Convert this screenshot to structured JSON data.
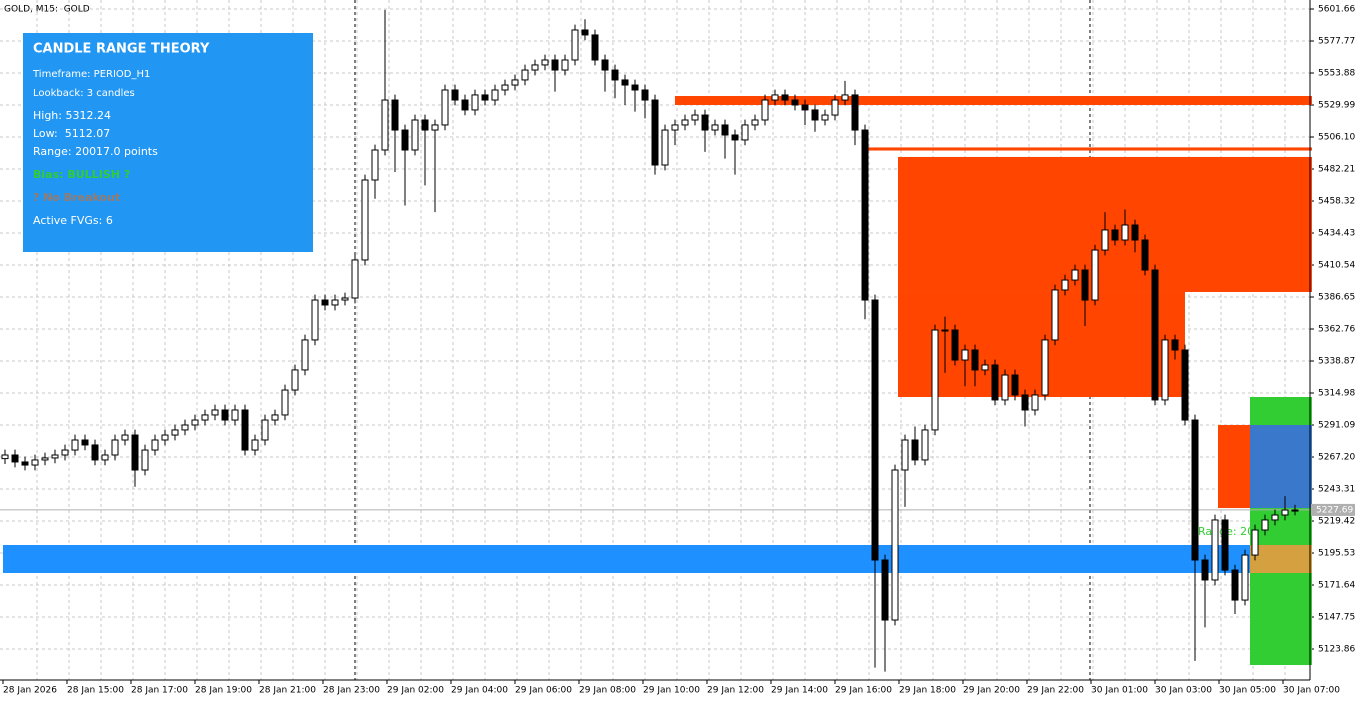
{
  "chart_data": {
    "type": "candlestick",
    "symbol_label": "GOLD, M15:  GOLD",
    "x_labels": [
      "28 Jan 2026",
      "28 Jan 15:00",
      "28 Jan 17:00",
      "28 Jan 19:00",
      "28 Jan 21:00",
      "28 Jan 23:00",
      "29 Jan 02:00",
      "29 Jan 04:00",
      "29 Jan 06:00",
      "29 Jan 08:00",
      "29 Jan 10:00",
      "29 Jan 12:00",
      "29 Jan 14:00",
      "29 Jan 16:00",
      "29 Jan 18:00",
      "29 Jan 20:00",
      "29 Jan 22:00",
      "30 Jan 01:00",
      "30 Jan 03:00",
      "30 Jan 05:00",
      "30 Jan 07:00"
    ],
    "open": [
      5266.0,
      5268.7,
      5263.5,
      5261.2,
      5265.0,
      5266.5,
      5268.7,
      5272.4,
      5279.9,
      5276.2,
      5265.0,
      5268.7,
      5279.9,
      5283.6,
      5257.5,
      5272.4,
      5279.9,
      5283.6,
      5287.4,
      5291.1,
      5294.8,
      5298.6,
      5302.3,
      5294.8,
      5302.3,
      5272.4,
      5279.9,
      5294.8,
      5298.6,
      5317.2,
      5332.2,
      5354.6,
      5384.4,
      5380.7,
      5384.4,
      5385.9,
      5414.3,
      5474.0,
      5496.4,
      5533.7,
      5511.3,
      5496.4,
      5518.8,
      5511.3,
      5515.1,
      5541.2,
      5533.7,
      5526.3,
      5537.5,
      5533.7,
      5541.2,
      5544.9,
      5548.7,
      5556.1,
      5559.9,
      5563.6,
      5556.1,
      5563.6,
      5586.0,
      5582.3,
      5563.6,
      5556.1,
      5548.7,
      5544.9,
      5541.2,
      5533.7,
      5485.2,
      5511.3,
      5515.1,
      5518.8,
      5522.5,
      5511.3,
      5515.1,
      5507.6,
      5503.9,
      5515.1,
      5518.8,
      5533.7,
      5537.5,
      5533.7,
      5530.0,
      5526.3,
      5518.8,
      5522.5,
      5533.7,
      5537.5,
      5511.3,
      5384.4,
      5190.3,
      5145.5,
      5257.5,
      5279.9,
      5265.0,
      5287.4,
      5362.0,
      5362.0,
      5339.6,
      5347.1,
      5332.2,
      5335.9,
      5309.8,
      5328.4,
      5313.5,
      5302.3,
      5313.5,
      5354.6,
      5391.9,
      5399.3,
      5406.8,
      5384.4,
      5421.7,
      5436.7,
      5429.2,
      5440.4,
      5429.2,
      5406.8,
      5309.8,
      5354.6,
      5347.1,
      5294.8,
      5190.3,
      5175.4,
      5220.2,
      5182.8,
      5160.4,
      5194.0,
      5212.7,
      5220.2,
      5223.9,
      5227.6
    ],
    "high": [
      5272.7,
      5272.7,
      5267.5,
      5269.0,
      5270.5,
      5272.7,
      5276.4,
      5283.9,
      5283.9,
      5280.2,
      5272.7,
      5283.9,
      5287.6,
      5287.6,
      5276.4,
      5283.9,
      5287.6,
      5291.4,
      5295.1,
      5298.8,
      5302.6,
      5306.3,
      5306.3,
      5306.3,
      5306.3,
      5283.9,
      5298.8,
      5302.6,
      5321.2,
      5336.2,
      5358.6,
      5388.4,
      5388.4,
      5388.4,
      5389.9,
      5418.3,
      5478.0,
      5500.4,
      5601.0,
      5537.7,
      5515.3,
      5522.8,
      5522.8,
      5519.1,
      5545.2,
      5545.2,
      5537.7,
      5541.5,
      5541.5,
      5545.2,
      5548.9,
      5552.7,
      5560.1,
      5563.9,
      5567.6,
      5567.6,
      5567.6,
      5590.0,
      5594.0,
      5586.3,
      5567.6,
      5560.1,
      5552.7,
      5548.9,
      5545.2,
      5537.7,
      5515.3,
      5519.1,
      5522.8,
      5526.5,
      5526.5,
      5519.1,
      5519.1,
      5511.6,
      5519.1,
      5522.8,
      5537.7,
      5541.5,
      5541.5,
      5537.7,
      5534.0,
      5530.3,
      5526.5,
      5537.7,
      5548.0,
      5541.5,
      5515.3,
      5388.4,
      5194.3,
      5261.5,
      5283.9,
      5290.0,
      5291.4,
      5366.0,
      5372.0,
      5366.0,
      5351.1,
      5351.1,
      5339.9,
      5339.9,
      5332.4,
      5332.4,
      5317.5,
      5317.5,
      5358.6,
      5395.9,
      5403.3,
      5410.8,
      5410.8,
      5425.7,
      5450.0,
      5440.7,
      5452.0,
      5444.4,
      5433.2,
      5410.8,
      5358.6,
      5358.6,
      5351.1,
      5298.8,
      5194.3,
      5224.2,
      5224.2,
      5186.8,
      5198.0,
      5216.7,
      5224.2,
      5227.9,
      5238.0,
      5231.6
    ],
    "low": [
      5262.0,
      5259.5,
      5257.2,
      5257.2,
      5261.0,
      5262.5,
      5264.7,
      5268.4,
      5272.2,
      5261.0,
      5261.0,
      5264.7,
      5275.9,
      5245.0,
      5253.5,
      5268.4,
      5275.9,
      5279.6,
      5283.4,
      5287.1,
      5290.8,
      5294.6,
      5290.8,
      5290.8,
      5268.4,
      5268.4,
      5275.9,
      5290.8,
      5294.6,
      5313.2,
      5328.2,
      5350.6,
      5376.7,
      5376.7,
      5380.4,
      5381.9,
      5410.3,
      5460.0,
      5492.4,
      5480.0,
      5455.0,
      5492.4,
      5470.0,
      5450.0,
      5511.1,
      5529.7,
      5522.3,
      5522.3,
      5529.7,
      5529.7,
      5537.2,
      5540.9,
      5544.7,
      5552.1,
      5555.9,
      5540.0,
      5552.1,
      5559.6,
      5578.3,
      5559.6,
      5540.0,
      5535.0,
      5530.0,
      5525.0,
      5520.0,
      5478.0,
      5481.2,
      5500.0,
      5511.1,
      5514.8,
      5495.0,
      5507.3,
      5490.0,
      5478.0,
      5499.9,
      5511.1,
      5514.8,
      5529.7,
      5529.7,
      5526.0,
      5515.0,
      5510.0,
      5514.8,
      5518.5,
      5529.7,
      5500.0,
      5370.0,
      5110.0,
      5107.0,
      5141.5,
      5230.0,
      5261.0,
      5261.0,
      5283.4,
      5330.0,
      5335.6,
      5320.0,
      5320.0,
      5328.2,
      5305.8,
      5305.8,
      5309.5,
      5290.0,
      5298.3,
      5309.5,
      5350.6,
      5387.9,
      5395.3,
      5365.0,
      5380.4,
      5417.7,
      5425.2,
      5425.2,
      5420.0,
      5402.8,
      5305.8,
      5305.8,
      5340.0,
      5290.8,
      5115.0,
      5140.0,
      5171.4,
      5178.8,
      5150.0,
      5156.4,
      5190.0,
      5208.7,
      5216.2,
      5219.9,
      5223.6
    ],
    "close": [
      5268.7,
      5263.5,
      5261.2,
      5265.0,
      5266.5,
      5268.7,
      5272.4,
      5279.9,
      5276.2,
      5265.0,
      5268.7,
      5279.9,
      5283.6,
      5257.5,
      5272.4,
      5279.9,
      5283.6,
      5287.4,
      5291.1,
      5294.8,
      5298.6,
      5302.3,
      5294.8,
      5302.3,
      5272.4,
      5279.9,
      5294.8,
      5298.6,
      5317.2,
      5332.2,
      5354.6,
      5384.4,
      5380.7,
      5384.4,
      5385.9,
      5414.3,
      5474.0,
      5496.4,
      5533.7,
      5511.3,
      5496.4,
      5518.8,
      5511.3,
      5515.1,
      5541.2,
      5533.7,
      5526.3,
      5537.5,
      5533.7,
      5541.2,
      5544.9,
      5548.7,
      5556.1,
      5559.9,
      5563.6,
      5556.1,
      5563.6,
      5586.0,
      5582.3,
      5563.6,
      5556.1,
      5548.7,
      5544.9,
      5541.2,
      5533.7,
      5485.2,
      5511.3,
      5515.1,
      5518.8,
      5522.5,
      5511.3,
      5515.1,
      5507.6,
      5503.9,
      5515.1,
      5518.8,
      5533.7,
      5537.5,
      5533.7,
      5530.0,
      5526.3,
      5518.8,
      5522.5,
      5533.7,
      5537.5,
      5511.3,
      5384.4,
      5190.3,
      5145.5,
      5257.5,
      5279.9,
      5265.0,
      5287.4,
      5362.0,
      5362.0,
      5339.6,
      5347.1,
      5332.2,
      5335.9,
      5309.8,
      5328.4,
      5313.5,
      5302.3,
      5313.5,
      5354.6,
      5391.9,
      5399.3,
      5406.8,
      5384.4,
      5421.7,
      5436.7,
      5429.2,
      5440.4,
      5429.2,
      5406.8,
      5309.8,
      5354.6,
      5347.1,
      5294.8,
      5190.3,
      5175.4,
      5220.2,
      5182.8,
      5160.4,
      5194.0,
      5212.7,
      5220.2,
      5223.9,
      5227.6,
      5227.6
    ],
    "ylim": [
      5100.72,
      5608.38
    ],
    "yticks": [
      5601.66,
      5577.77,
      5553.88,
      5529.99,
      {
        "value": 5506.1,
        "label": "5506.10"
      },
      5482.21,
      5458.32,
      5434.43,
      5410.54,
      5386.65,
      5362.76,
      5338.87,
      5314.98,
      5291.09,
      {
        "value": 5267.2,
        "label": "5267.20"
      },
      5243.31,
      5219.42,
      5195.53,
      5171.64,
      5147.75,
      5123.86
    ],
    "grid": true,
    "current_price": 5227.69,
    "zones": [
      {
        "top": 5536.7,
        "bottom": 5530.0,
        "color": "#ff4500"
      },
      {
        "top": 5498.3,
        "bottom": 5496.0,
        "color": "#ff4500"
      },
      {
        "top": 5491.2,
        "bottom": 5390.4,
        "color": "#ff4500"
      },
      {
        "top": 5390.4,
        "bottom": 5312.0,
        "color": "#ff4500"
      },
      {
        "top": 5201.5,
        "bottom": 5180.6,
        "color": "#1e90ff"
      },
      {
        "top": 5312.0,
        "bottom": 5291.1,
        "color": "#32cd32"
      },
      {
        "top": 5291.1,
        "bottom": 5229.1,
        "color": "#3a78cc"
      },
      {
        "top": 5291.1,
        "bottom": 5229.1,
        "color": "#ff4500"
      },
      {
        "top": 5229.1,
        "bottom": 5201.5,
        "color": "#32cd32"
      },
      {
        "top": 5201.5,
        "bottom": 5180.6,
        "color": "#d4a040"
      },
      {
        "top": 5180.6,
        "bottom": 5111.9,
        "color": "#32cd32"
      }
    ],
    "annotation": "Range: 20",
    "bull_color": "#ffffff",
    "bear_color": "#000000"
  },
  "panel": {
    "title": "CANDLE RANGE THEORY",
    "lines": [
      "Timeframe: PERIOD_H1",
      "Lookback: 3 candles",
      "High: 5312.24",
      "Low:  5112.07",
      "Range: 20017.0 points",
      "Bias: BULLISH ?",
      "? No Breakout",
      "Active FVGs: 6"
    ]
  }
}
